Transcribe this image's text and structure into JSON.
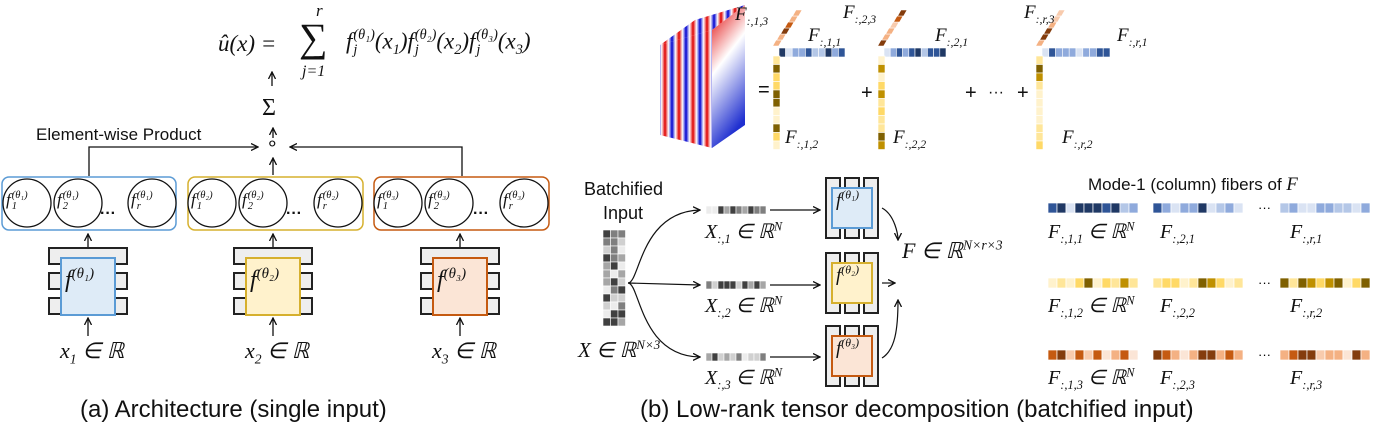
{
  "panel_a": {
    "formula": {
      "lhs": [
        {
          "t": "û(x) ="
        }
      ],
      "sigma": "∑",
      "upper": "r",
      "lower": "j=1",
      "rhs": [
        {
          "t": "f"
        },
        {
          "ss": [
            "j",
            "(θ₁)"
          ]
        },
        {
          "t": "(x"
        },
        {
          "sub": "1"
        },
        {
          "t": ")f"
        },
        {
          "ss": [
            "j",
            "(θ₂)"
          ]
        },
        {
          "t": "(x"
        },
        {
          "sub": "2"
        },
        {
          "t": ")f"
        },
        {
          "ss": [
            "j",
            "(θ₃)"
          ]
        },
        {
          "t": "(x"
        },
        {
          "sub": "3"
        },
        {
          "t": ")"
        }
      ]
    },
    "sum_node": "Σ",
    "product_node": "∘",
    "element_wise_label": "Element-wise Product",
    "groups": [
      {
        "circles": [
          [
            {
              "t": "f"
            },
            {
              "ss": [
                "1",
                "(θ₁)"
              ]
            }
          ],
          [
            {
              "t": "f"
            },
            {
              "ss": [
                "2",
                "(θ₁)"
              ]
            }
          ],
          [
            {
              "t": "f"
            },
            {
              "ss": [
                "r",
                "(θ₁)"
              ]
            }
          ]
        ],
        "net": [
          {
            "t": "f"
          },
          {
            "sup": "(θ₁)"
          }
        ],
        "input": [
          {
            "t": "x"
          },
          {
            "sub": "1"
          },
          {
            "t": " ∈ ℝ"
          }
        ]
      },
      {
        "circles": [
          [
            {
              "t": "f"
            },
            {
              "ss": [
                "1",
                "(θ₂)"
              ]
            }
          ],
          [
            {
              "t": "f"
            },
            {
              "ss": [
                "2",
                "(θ₂)"
              ]
            }
          ],
          [
            {
              "t": "f"
            },
            {
              "ss": [
                "r",
                "(θ₂)"
              ]
            }
          ]
        ],
        "net": [
          {
            "t": "f"
          },
          {
            "sup": "(θ₂)"
          }
        ],
        "input": [
          {
            "t": "x"
          },
          {
            "sub": "2"
          },
          {
            "t": " ∈ ℝ"
          }
        ]
      },
      {
        "circles": [
          [
            {
              "t": "f"
            },
            {
              "ss": [
                "1",
                "(θ₃)"
              ]
            }
          ],
          [
            {
              "t": "f"
            },
            {
              "ss": [
                "2",
                "(θ₃)"
              ]
            }
          ],
          [
            {
              "t": "f"
            },
            {
              "ss": [
                "r",
                "(θ₃)"
              ]
            }
          ]
        ],
        "net": [
          {
            "t": "f"
          },
          {
            "sup": "(θ₃)"
          }
        ],
        "input": [
          {
            "t": "x"
          },
          {
            "sub": "3"
          },
          {
            "t": " ∈ ℝ"
          }
        ]
      }
    ],
    "ellipsis": "···",
    "caption": "(a) Architecture (single input)"
  },
  "panel_b": {
    "equals": "=",
    "plus": "+",
    "ellipsis": "···",
    "top_labels": [
      [
        [
          {
            "t": "F"
          },
          {
            "sub": ":,1,3"
          }
        ],
        [
          {
            "t": "F"
          },
          {
            "sub": ":,1,1"
          }
        ],
        [
          {
            "t": "F"
          },
          {
            "sub": ":,1,2"
          }
        ]
      ],
      [
        [
          {
            "t": "F"
          },
          {
            "sub": ":,2,3"
          }
        ],
        [
          {
            "t": "F"
          },
          {
            "sub": ":,2,1"
          }
        ],
        [
          {
            "t": "F"
          },
          {
            "sub": ":,2,2"
          }
        ]
      ],
      [
        [
          {
            "t": "F"
          },
          {
            "sub": ":,r,3"
          }
        ],
        [
          {
            "t": "F"
          },
          {
            "sub": ":,r,1"
          }
        ],
        [
          {
            "t": "F"
          },
          {
            "sub": ":,r,2"
          }
        ]
      ]
    ],
    "batch_label_line1": "Batchified",
    "batch_label_line2": "Input",
    "input_matrix": [
      {
        "t": "X ∈ ℝ"
      },
      {
        "sup": "N×3"
      }
    ],
    "columns": [
      [
        {
          "t": "X"
        },
        {
          "sub": ":,1"
        },
        {
          "t": " ∈ ℝ"
        },
        {
          "sup": "N"
        }
      ],
      [
        {
          "t": "X"
        },
        {
          "sub": ":,2"
        },
        {
          "t": " ∈ ℝ"
        },
        {
          "sup": "N"
        }
      ],
      [
        {
          "t": "X"
        },
        {
          "sub": ":,3"
        },
        {
          "t": " ∈ ℝ"
        },
        {
          "sup": "N"
        }
      ]
    ],
    "nets": [
      [
        {
          "t": "f"
        },
        {
          "sup": "(θ₁)"
        }
      ],
      [
        {
          "t": "f"
        },
        {
          "sup": "(θ₂)"
        }
      ],
      [
        {
          "t": "f"
        },
        {
          "sup": "(θ₃)"
        }
      ]
    ],
    "output_tensor": [
      {
        "t": "F ∈ ℝ"
      },
      {
        "sup": "N×r×3"
      }
    ],
    "fibers_title": [
      {
        "t": "Mode-1 (column) fibers of "
      },
      {
        "it": "F"
      }
    ],
    "fiber_labels": [
      [
        [
          {
            "t": "F"
          },
          {
            "sub": ":,1,1"
          },
          {
            "t": " ∈ ℝ"
          },
          {
            "sup": "N"
          }
        ],
        [
          {
            "t": "F"
          },
          {
            "sub": ":,2,1"
          }
        ],
        [
          {
            "t": "F"
          },
          {
            "sub": ":,r,1"
          }
        ]
      ],
      [
        [
          {
            "t": "F"
          },
          {
            "sub": ":,1,2"
          },
          {
            "t": " ∈ ℝ"
          },
          {
            "sup": "N"
          }
        ],
        [
          {
            "t": "F"
          },
          {
            "sub": ":,2,2"
          }
        ],
        [
          {
            "t": "F"
          },
          {
            "sub": ":,r,2"
          }
        ]
      ],
      [
        [
          {
            "t": "F"
          },
          {
            "sub": ":,1,3"
          },
          {
            "t": " ∈ ℝ"
          },
          {
            "sup": "N"
          }
        ],
        [
          {
            "t": "F"
          },
          {
            "sub": ":,2,3"
          }
        ],
        [
          {
            "t": "F"
          },
          {
            "sub": ":,r,3"
          }
        ]
      ]
    ],
    "caption": "(b) Low-rank tensor decomposition (batchified input)"
  },
  "colors": {
    "blue": {
      "stroke": "#5b9bd5",
      "fill": "#deebf7",
      "shades": [
        "#1f3864",
        "#2f5597",
        "#8faadc",
        "#b4c7e7",
        "#dae3f3"
      ]
    },
    "yellow": {
      "stroke": "#d6b02e",
      "fill": "#fff2cc",
      "shades": [
        "#7f6000",
        "#bf9000",
        "#ffd966",
        "#ffe699",
        "#fff2cc"
      ]
    },
    "orange": {
      "stroke": "#c55a11",
      "fill": "#fbe5d6",
      "shades": [
        "#843c0c",
        "#c55a11",
        "#f4b183",
        "#f8cbad",
        "#fbe5d6"
      ]
    },
    "gray": {
      "shades": [
        "#404040",
        "#7f7f7f",
        "#a6a6a6",
        "#d0d0d0",
        "#ececec"
      ]
    },
    "cube_red": "#e00000",
    "cube_blue": "#0000d0"
  }
}
